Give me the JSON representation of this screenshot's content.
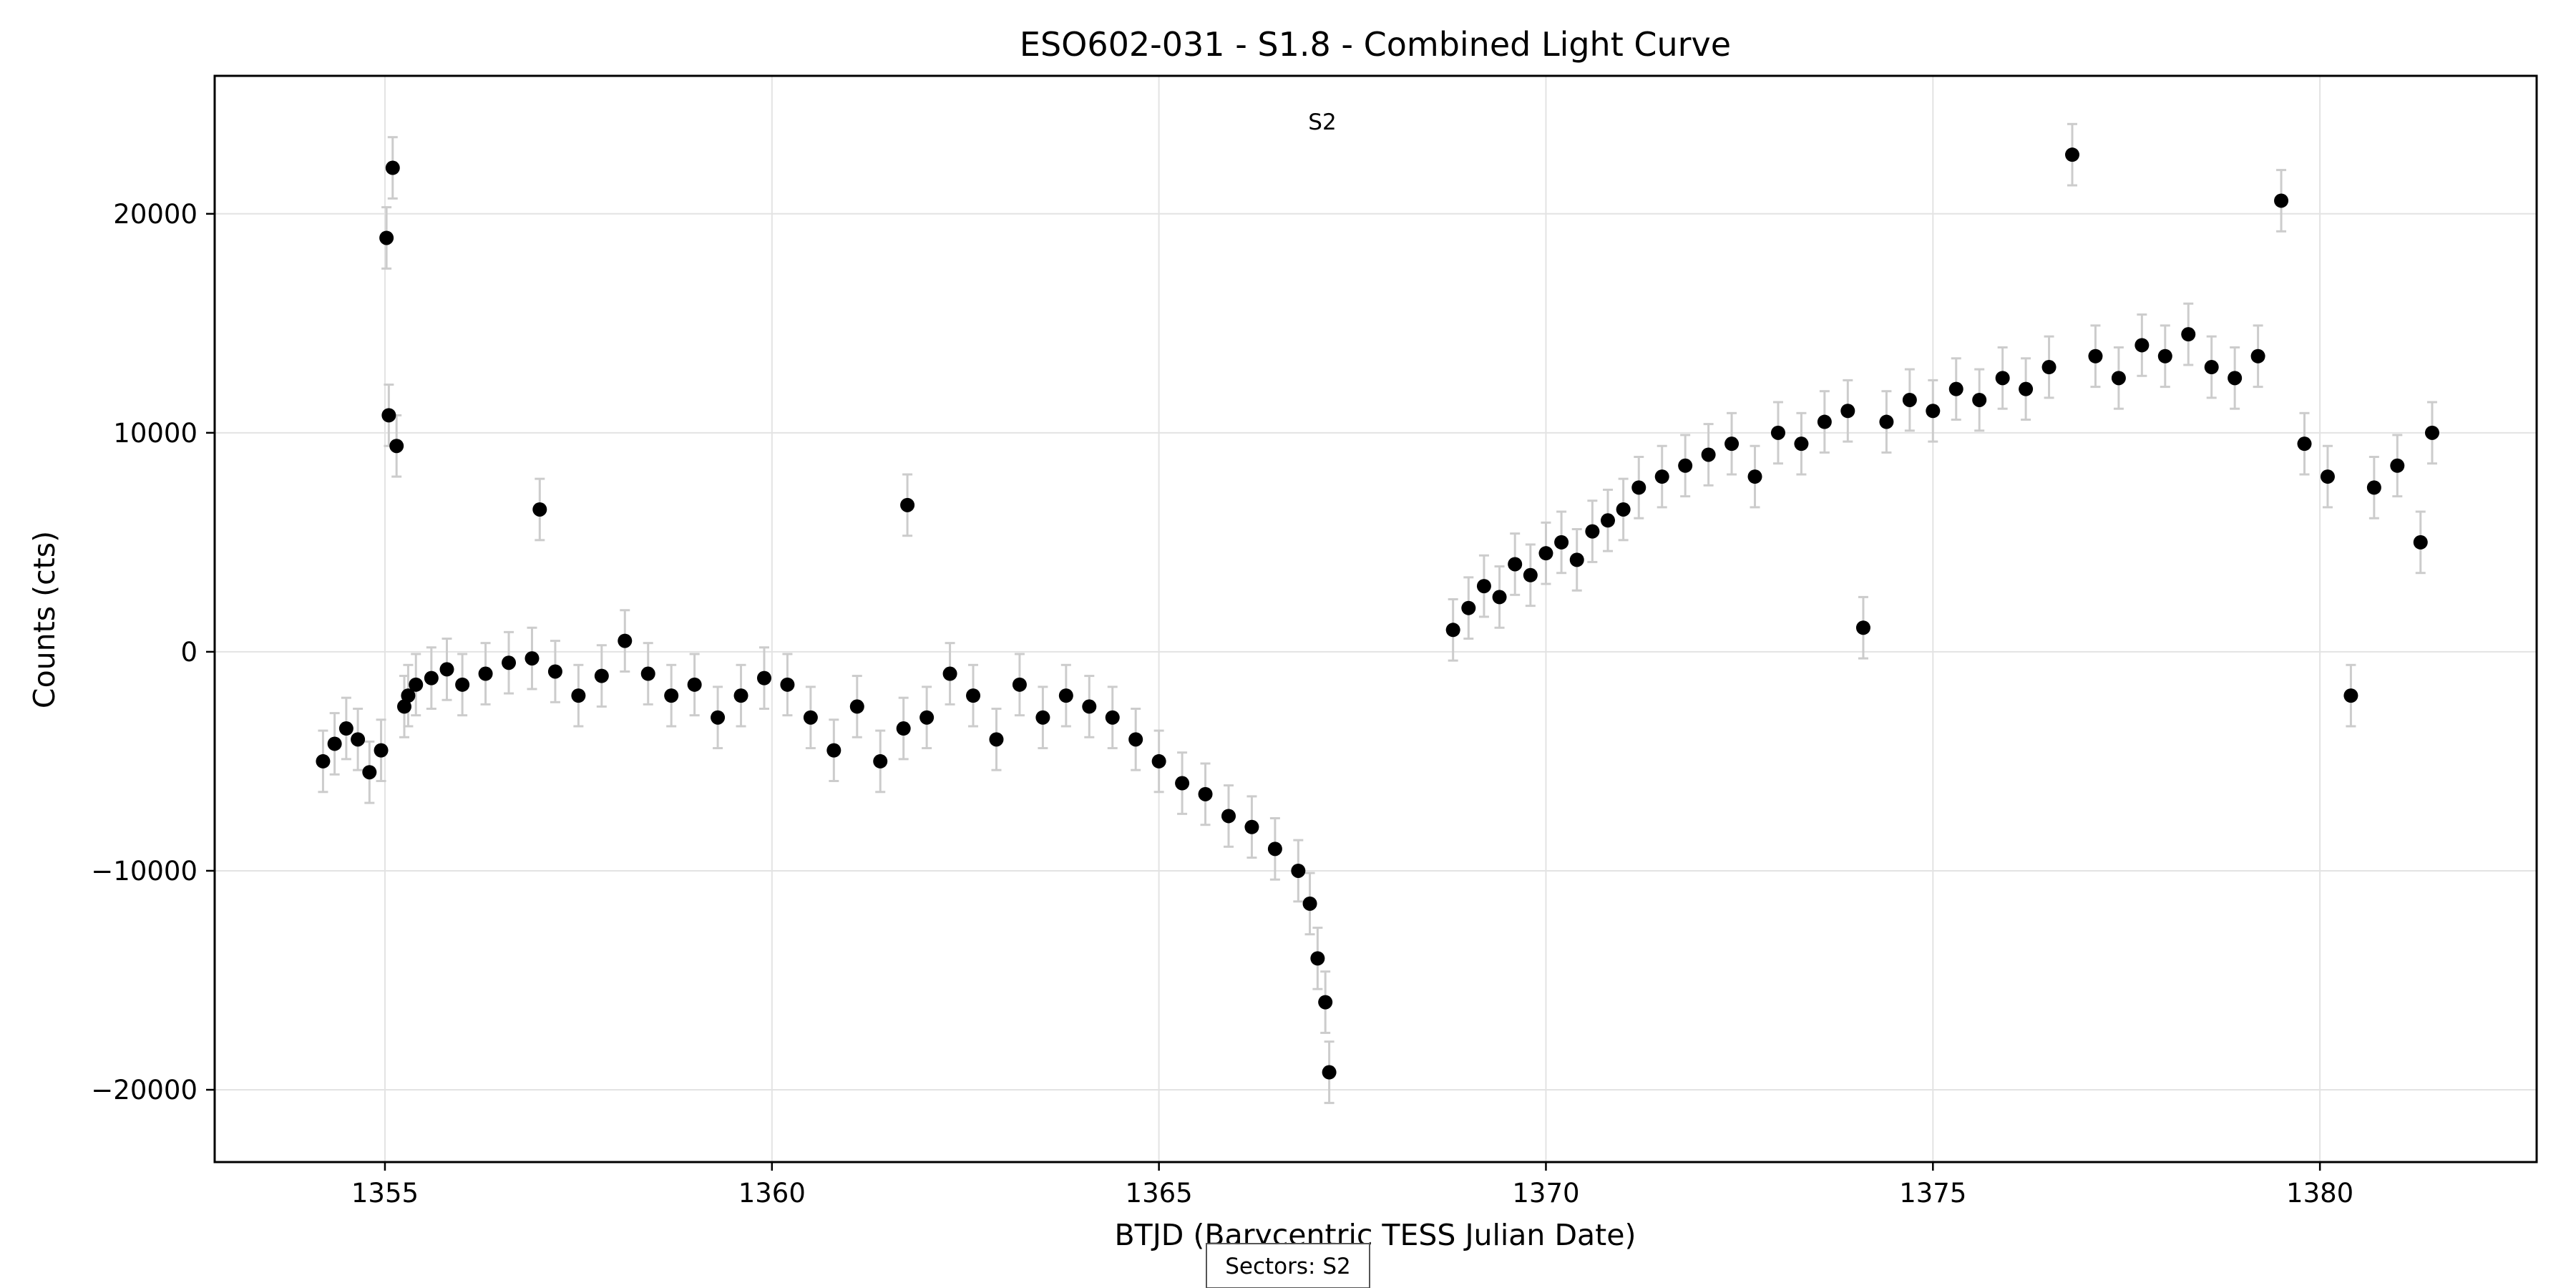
{
  "chart_data": {
    "type": "scatter",
    "title": "ESO602-031 - S1.8 - Combined Light Curve",
    "xlabel": "BTJD (Barycentric TESS Julian Date)",
    "ylabel": "Counts (cts)",
    "xlim": [
      1352.8,
      1382.8
    ],
    "ylim": [
      -23300,
      26300
    ],
    "xticks": [
      1355,
      1360,
      1365,
      1370,
      1375,
      1380
    ],
    "yticks": [
      -20000,
      -10000,
      0,
      10000,
      20000
    ],
    "xtick_labels": [
      "1355",
      "1360",
      "1365",
      "1370",
      "1375",
      "1380"
    ],
    "ytick_labels": [
      "−20000",
      "−10000",
      "0",
      "10000",
      "20000"
    ],
    "grid": true,
    "annotation": "S2",
    "footer_box": "Sectors: S2",
    "marker_color": "#000000",
    "errorbar_color": "#cccccc",
    "typical_error": 1400,
    "series": [
      {
        "x": [
          1354.2,
          1354.35,
          1354.5,
          1354.65,
          1354.8,
          1354.95,
          1355.02,
          1355.05,
          1355.1,
          1355.15,
          1355.25,
          1355.3,
          1355.4,
          1355.6,
          1355.8,
          1356.0,
          1356.3,
          1356.6,
          1356.9,
          1357.0,
          1357.2,
          1357.5,
          1357.8,
          1358.1,
          1358.4,
          1358.7,
          1359.0,
          1359.3,
          1359.6,
          1359.9,
          1360.2,
          1360.5,
          1360.8,
          1361.1,
          1361.4,
          1361.7,
          1361.75,
          1362.0,
          1362.3,
          1362.6,
          1362.9,
          1363.2,
          1363.5,
          1363.8,
          1364.1,
          1364.4,
          1364.7,
          1365.0,
          1365.3,
          1365.6,
          1365.9,
          1366.2,
          1366.5,
          1366.8,
          1366.95,
          1367.05,
          1367.15,
          1367.2
        ],
        "y": [
          -5000,
          -4200,
          -3500,
          -4000,
          -5500,
          -4500,
          18900,
          10800,
          22100,
          9400,
          -2500,
          -2000,
          -1500,
          -1200,
          -800,
          -1500,
          -1000,
          -500,
          -300,
          6500,
          -900,
          -2000,
          -1100,
          500,
          -1000,
          -2000,
          -1500,
          -3000,
          -2000,
          -1200,
          -1500,
          -3000,
          -4500,
          -2500,
          -5000,
          -3500,
          6700,
          -3000,
          -1000,
          -2000,
          -4000,
          -1500,
          -3000,
          -2000,
          -2500,
          -3000,
          -4000,
          -5000,
          -6000,
          -6500,
          -7500,
          -8000,
          -9000,
          -10000,
          -11500,
          -14000,
          -16000,
          -19200
        ]
      },
      {
        "x": [
          1368.8,
          1369.0,
          1369.2,
          1369.4,
          1369.6,
          1369.8,
          1370.0,
          1370.2,
          1370.4,
          1370.6,
          1370.8,
          1371.0,
          1371.2,
          1371.5,
          1371.8,
          1372.1,
          1372.4,
          1372.7,
          1373.0,
          1373.3,
          1373.6,
          1373.9,
          1374.1,
          1374.4,
          1374.7,
          1375.0,
          1375.3,
          1375.6,
          1375.9,
          1376.2,
          1376.5,
          1376.8,
          1377.1,
          1377.4,
          1377.7,
          1378.0,
          1378.3,
          1378.6,
          1378.9,
          1379.2,
          1379.5,
          1379.8,
          1380.1,
          1380.4,
          1380.7,
          1381.0,
          1381.3,
          1381.45
        ],
        "y": [
          1000,
          2000,
          3000,
          2500,
          4000,
          3500,
          4500,
          5000,
          4200,
          5500,
          6000,
          6500,
          7500,
          8000,
          8500,
          9000,
          9500,
          8000,
          10000,
          9500,
          10500,
          11000,
          1100,
          10500,
          11500,
          11000,
          12000,
          11500,
          12500,
          12000,
          13000,
          22700,
          13500,
          12500,
          14000,
          13500,
          14500,
          13000,
          12500,
          13500,
          20600,
          9500,
          8000,
          -2000,
          7500,
          8500,
          5000,
          10000
        ]
      }
    ]
  }
}
